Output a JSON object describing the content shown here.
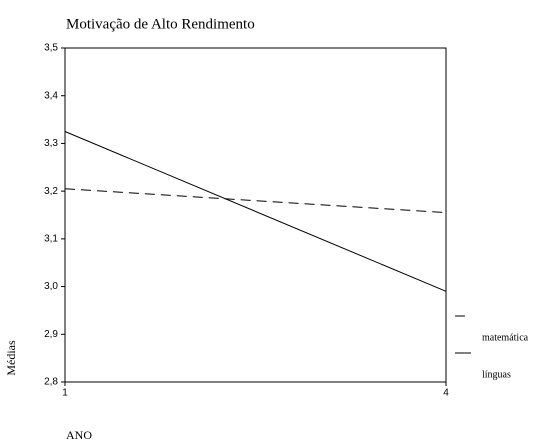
{
  "chart_data": {
    "type": "line",
    "title": "Motivação de Alto Rendimento",
    "x_label": "ANO",
    "y_label": "Médias",
    "x": [
      1,
      4
    ],
    "xlim": [
      1,
      4
    ],
    "xticks": [
      1,
      4
    ],
    "ylim": [
      2.8,
      3.5
    ],
    "yticks": [
      {
        "value": 2.8,
        "label": "2,8"
      },
      {
        "value": 2.9,
        "label": "2,9"
      },
      {
        "value": 3.0,
        "label": "3,0"
      },
      {
        "value": 3.1,
        "label": "3,1"
      },
      {
        "value": 3.2,
        "label": "3,2"
      },
      {
        "value": 3.3,
        "label": "3,3"
      },
      {
        "value": 3.4,
        "label": "3,4"
      },
      {
        "value": 3.5,
        "label": "3,5"
      }
    ],
    "series": [
      {
        "name": "matemática",
        "color": "#000000",
        "style": "dashed",
        "values": [
          3.205,
          3.155
        ]
      },
      {
        "name": "línguas",
        "color": "#000000",
        "style": "solid",
        "values": [
          3.325,
          2.99
        ]
      }
    ]
  }
}
